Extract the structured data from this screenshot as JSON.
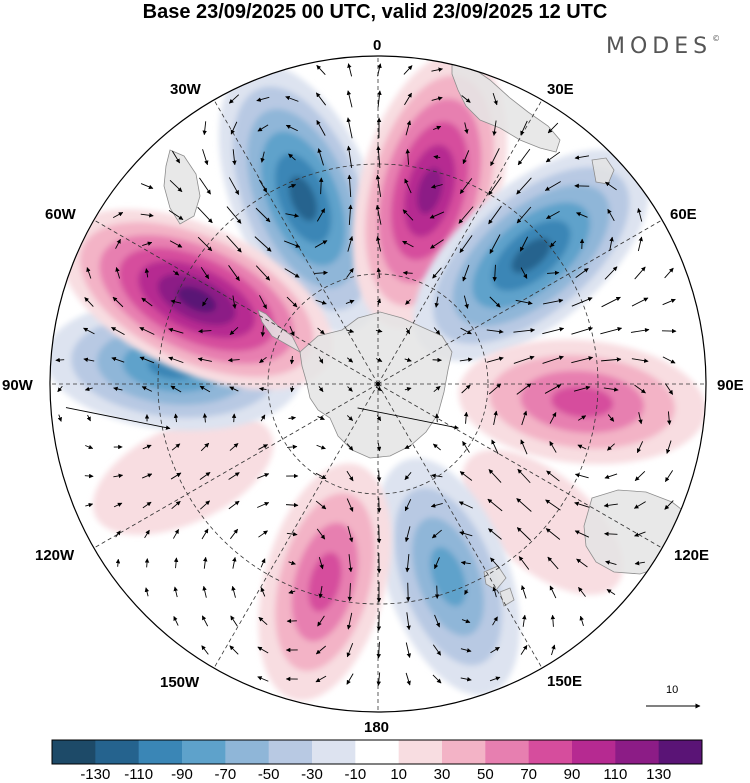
{
  "title": "Base 23/09/2025 00 UTC, valid 23/09/2025 12 UTC",
  "brand": "MODES",
  "brand_mark": "©",
  "longitude_labels": {
    "lon_0": "0",
    "lon_30e": "30E",
    "lon_60e": "60E",
    "lon_90e": "90E",
    "lon_120e": "120E",
    "lon_150e": "150E",
    "lon_180": "180",
    "lon_150w": "150W",
    "lon_120w": "120W",
    "lon_90w": "90W",
    "lon_60w": "60W",
    "lon_30w": "30W"
  },
  "reference_vector": {
    "label": "10"
  },
  "colorbar": {
    "ticks": [
      "-130",
      "-110",
      "-90",
      "-70",
      "-50",
      "-30",
      "-10",
      "10",
      "30",
      "50",
      "70",
      "90",
      "110",
      "130"
    ],
    "colors": [
      "#1d4a68",
      "#25638e",
      "#3a86b6",
      "#5ea2cb",
      "#8fb6d8",
      "#b8c9e3",
      "#dde3f0",
      "#ffffff",
      "#f8dde1",
      "#f3b3c6",
      "#e77fb0",
      "#d64d9d",
      "#b62a91",
      "#8c1c86",
      "#5a1476"
    ]
  },
  "anomaly_centers": [
    {
      "lon": -22,
      "value": -120
    },
    {
      "lon": 15,
      "value": 120
    },
    {
      "lon": 50,
      "value": -120
    },
    {
      "lon": 95,
      "value": 80
    },
    {
      "lon": 130,
      "value": 20
    },
    {
      "lon": 160,
      "value": -80
    },
    {
      "lon": -165,
      "value": 75
    },
    {
      "lon": -115,
      "value": 20
    },
    {
      "lon": -85,
      "value": -90
    },
    {
      "lon": -65,
      "value": 130
    }
  ],
  "colors": {
    "ocean_fill": "#ffffff",
    "land_fill": "#e9e9e9",
    "coast": "#8d8d8d",
    "grid": "#333333"
  }
}
